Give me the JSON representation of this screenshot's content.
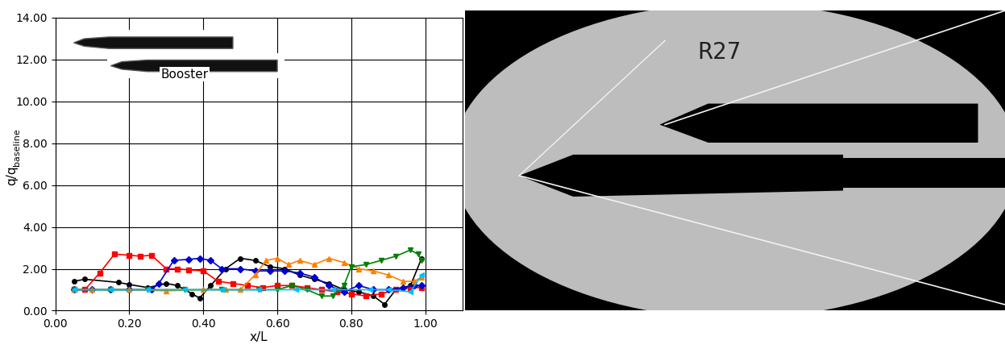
{
  "chart_data": {
    "type": "line",
    "x_label": "x/L",
    "y_label": "q/q",
    "y_label_subscript": "baseline",
    "xlim": [
      0.0,
      1.1
    ],
    "ylim": [
      0.0,
      14.0
    ],
    "xticks": [
      {
        "value": 0.0,
        "label": "0.00"
      },
      {
        "value": 0.2,
        "label": "0.20"
      },
      {
        "value": 0.4,
        "label": "0.40"
      },
      {
        "value": 0.6,
        "label": "0.60"
      },
      {
        "value": 0.8,
        "label": "0.80"
      },
      {
        "value": 1.0,
        "label": "1.00"
      }
    ],
    "yticks": [
      {
        "value": 0.0,
        "label": "0.00"
      },
      {
        "value": 2.0,
        "label": "2.00"
      },
      {
        "value": 4.0,
        "label": "4.00"
      },
      {
        "value": 6.0,
        "label": "6.00"
      },
      {
        "value": 8.0,
        "label": "8.00"
      },
      {
        "value": 10.0,
        "label": "10.00"
      },
      {
        "value": 12.0,
        "label": "12.00"
      },
      {
        "value": 14.0,
        "label": "14.00"
      }
    ],
    "grid": true,
    "annotations": [
      {
        "text": "Booster",
        "x": 0.35,
        "y": 11.3
      }
    ],
    "series": [
      {
        "color": "#000000",
        "marker": "circle",
        "x": [
          0.05,
          0.08,
          0.17,
          0.2,
          0.25,
          0.3,
          0.33,
          0.37,
          0.39,
          0.42,
          0.46,
          0.5,
          0.54,
          0.58,
          0.62,
          0.66,
          0.7,
          0.74,
          0.78,
          0.82,
          0.86,
          0.89,
          0.92,
          0.96,
          0.99
        ],
        "values": [
          1.4,
          1.5,
          1.35,
          1.25,
          1.1,
          1.3,
          1.2,
          0.8,
          0.6,
          1.2,
          2.0,
          2.5,
          2.4,
          2.1,
          2.0,
          1.7,
          1.5,
          1.3,
          1.0,
          0.9,
          0.7,
          0.3,
          1.0,
          1.2,
          2.5
        ]
      },
      {
        "color": "#ff0000",
        "marker": "square",
        "x": [
          0.05,
          0.08,
          0.12,
          0.16,
          0.2,
          0.23,
          0.26,
          0.3,
          0.33,
          0.36,
          0.4,
          0.44,
          0.48,
          0.52,
          0.56,
          0.6,
          0.64,
          0.68,
          0.72,
          0.76,
          0.8,
          0.84,
          0.88,
          0.92,
          0.96,
          0.99
        ],
        "values": [
          1.0,
          1.0,
          1.8,
          2.7,
          2.65,
          2.6,
          2.65,
          2.0,
          2.0,
          1.95,
          1.9,
          1.4,
          1.3,
          1.2,
          1.1,
          1.2,
          1.2,
          1.1,
          1.0,
          0.9,
          0.8,
          0.7,
          0.8,
          1.0,
          1.1,
          1.1
        ]
      },
      {
        "color": "#0000cc",
        "marker": "diamond",
        "x": [
          0.05,
          0.1,
          0.15,
          0.2,
          0.26,
          0.28,
          0.32,
          0.36,
          0.39,
          0.42,
          0.45,
          0.5,
          0.54,
          0.58,
          0.62,
          0.66,
          0.7,
          0.74,
          0.78,
          0.82,
          0.86,
          0.9,
          0.94,
          0.97,
          0.99
        ],
        "values": [
          1.0,
          1.0,
          1.0,
          1.0,
          1.0,
          1.3,
          2.4,
          2.45,
          2.5,
          2.4,
          2.0,
          2.0,
          1.9,
          1.9,
          1.9,
          1.8,
          1.6,
          1.2,
          0.9,
          1.2,
          1.0,
          1.0,
          1.1,
          1.2,
          1.2
        ]
      },
      {
        "color": "#ff7f00",
        "marker": "triangle_up",
        "x": [
          0.05,
          0.1,
          0.2,
          0.3,
          0.4,
          0.46,
          0.5,
          0.54,
          0.57,
          0.6,
          0.63,
          0.66,
          0.7,
          0.74,
          0.78,
          0.82,
          0.86,
          0.9,
          0.94,
          0.97,
          0.99
        ],
        "values": [
          1.0,
          1.0,
          1.0,
          0.95,
          1.0,
          1.0,
          1.0,
          1.7,
          2.4,
          2.5,
          2.2,
          2.4,
          2.2,
          2.5,
          2.3,
          2.0,
          1.9,
          1.7,
          1.4,
          1.4,
          1.6
        ]
      },
      {
        "color": "#008000",
        "marker": "triangle_down",
        "x": [
          0.05,
          0.15,
          0.25,
          0.35,
          0.45,
          0.55,
          0.6,
          0.64,
          0.68,
          0.72,
          0.75,
          0.78,
          0.8,
          0.84,
          0.88,
          0.92,
          0.96,
          0.98,
          0.99
        ],
        "values": [
          1.0,
          1.0,
          1.0,
          1.0,
          1.0,
          1.0,
          1.0,
          1.2,
          1.0,
          0.7,
          0.7,
          1.2,
          2.1,
          2.2,
          2.4,
          2.6,
          2.9,
          2.7,
          2.4
        ]
      },
      {
        "color": "#00bfff",
        "marker": "triangle_left",
        "x": [
          0.05,
          0.15,
          0.25,
          0.35,
          0.45,
          0.55,
          0.65,
          0.75,
          0.85,
          0.9,
          0.96,
          0.99
        ],
        "values": [
          1.0,
          1.0,
          1.0,
          1.0,
          1.0,
          1.0,
          1.0,
          1.0,
          1.0,
          1.0,
          0.9,
          1.7
        ]
      }
    ]
  },
  "photo": {
    "text": "R27"
  }
}
